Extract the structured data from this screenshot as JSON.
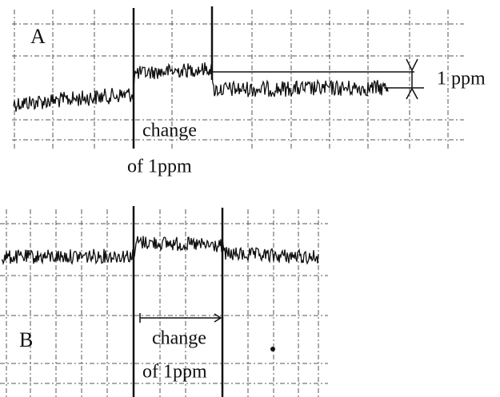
{
  "panels": [
    {
      "label": "A",
      "annotation_lines": [
        "change",
        "of 1ppm"
      ],
      "scale_label": "1 ppm"
    },
    {
      "label": "B",
      "annotation_lines": [
        "change",
        "of 1ppm"
      ]
    }
  ]
}
